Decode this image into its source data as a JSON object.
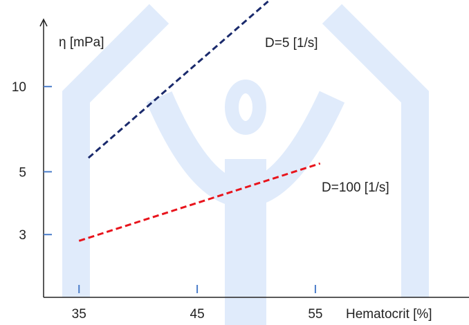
{
  "chart_data": {
    "type": "line",
    "x_label": "Hematocrit [%]",
    "y_label": "η [mPa]",
    "yscale": "log",
    "xlim": [
      32,
      68
    ],
    "xticks": [
      35,
      45,
      55
    ],
    "ylim": [
      1.8,
      20
    ],
    "yticks": [
      3,
      5,
      10
    ],
    "series": [
      {
        "name": "D=5 [1/s]",
        "color": "#1a2a6c",
        "linestyle": "dashed",
        "x": [
          35.8,
          51
        ],
        "values": [
          5.6,
          20
        ]
      },
      {
        "name": "D=100 [1/s]",
        "color": "#e8141c",
        "linestyle": "dashed",
        "x": [
          35,
          55.4
        ],
        "values": [
          2.85,
          5.35
        ]
      }
    ]
  }
}
